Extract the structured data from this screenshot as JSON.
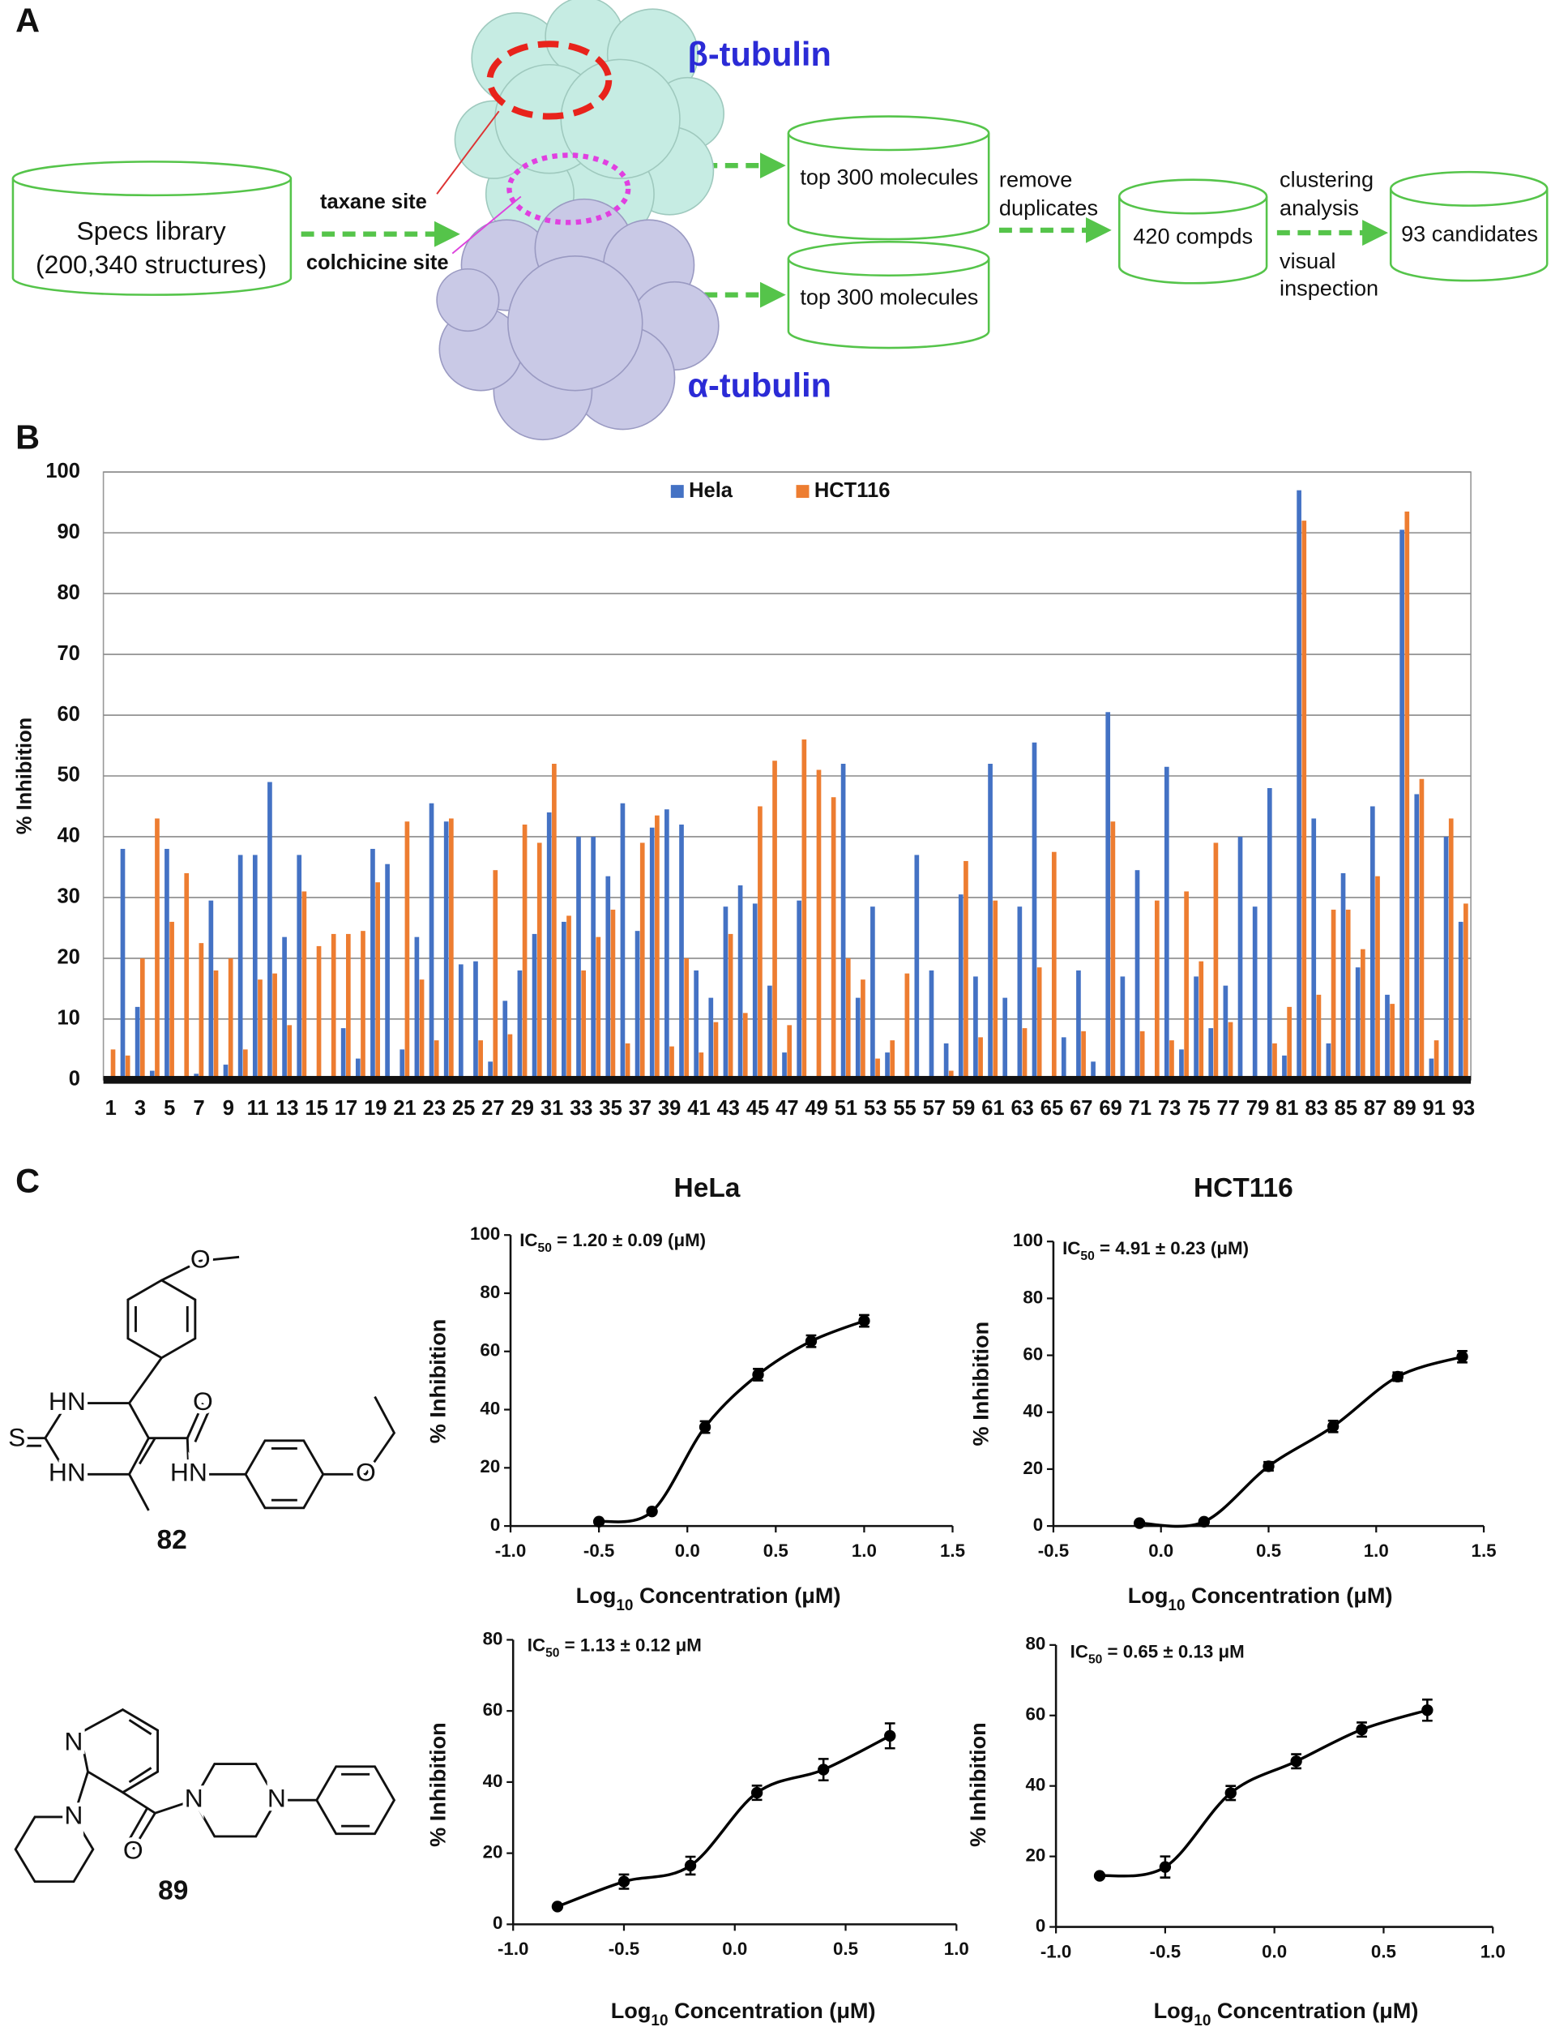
{
  "panel_labels": [
    "A",
    "B",
    "C"
  ],
  "diagram": {
    "library": [
      "Specs library",
      "(200,340 structures)"
    ],
    "taxane_site": "taxane site",
    "colchicine_site": "colchicine site",
    "beta": "β-tubulin",
    "alpha": "α-tubulin",
    "top_hits": [
      "top 300 molecules",
      "top 300 molecules"
    ],
    "step1": [
      "remove",
      "duplicates"
    ],
    "compounds": "420 compds",
    "step2_top": [
      "clustering",
      "analysis"
    ],
    "step2_bottom": [
      "visual",
      "inspection"
    ],
    "candidates": "93 candidates"
  },
  "structures": [
    {
      "label": "82",
      "atoms": [
        "O",
        "HN",
        "O",
        "S",
        "HN",
        "HN",
        "O"
      ]
    },
    {
      "label": "89",
      "atoms": [
        "N",
        "N",
        "O",
        "N",
        "N"
      ]
    }
  ],
  "chart_data": [
    {
      "type": "bar",
      "y_label": "% Inhibition",
      "grid": true,
      "legend": "top",
      "ylim": [
        0,
        100
      ],
      "yticks": [
        0,
        10,
        20,
        30,
        40,
        50,
        60,
        70,
        80,
        90,
        100
      ],
      "categories": [
        "1",
        null,
        "3",
        null,
        "5",
        null,
        "7",
        null,
        "9",
        null,
        "11",
        null,
        "13",
        null,
        "15",
        null,
        "17",
        null,
        "19",
        null,
        "21",
        null,
        "23",
        null,
        "25",
        null,
        "27",
        null,
        "29",
        null,
        "31",
        null,
        "33",
        null,
        "35",
        null,
        "37",
        null,
        "39",
        null,
        "41",
        null,
        "43",
        null,
        "45",
        null,
        "47",
        null,
        "49",
        null,
        "51",
        null,
        "53",
        null,
        "55",
        null,
        "57",
        null,
        "59",
        null,
        "61",
        null,
        "63",
        null,
        "65",
        null,
        "67",
        null,
        "69",
        null,
        "71",
        null,
        "73",
        null,
        "75",
        null,
        "77",
        null,
        "79",
        null,
        "81",
        null,
        "83",
        null,
        "85",
        null,
        "87",
        null,
        "89",
        null,
        "91",
        null,
        "93"
      ],
      "series": [
        {
          "name": "Hela",
          "color": "#4472c4",
          "values": [
            0.5,
            38,
            12,
            1.5,
            38,
            0.5,
            1,
            29.5,
            2.5,
            37,
            37,
            49,
            23.5,
            37,
            0.5,
            0.5,
            8.5,
            3.5,
            38,
            35.5,
            5,
            23.5,
            45.5,
            42.5,
            19,
            19.5,
            3,
            13,
            18,
            24,
            44,
            26,
            40,
            40,
            33.5,
            45.5,
            24.5,
            41.5,
            44.5,
            42,
            18,
            13.5,
            28.5,
            32,
            29,
            15.5,
            4.5,
            29.5,
            0.5,
            0.5,
            52,
            13.5,
            28.5,
            4.5,
            0.5,
            37,
            18,
            6,
            30.5,
            17,
            52,
            13.5,
            28.5,
            55.5,
            0.5,
            7,
            18,
            3,
            60.5,
            17,
            34.5,
            0.5,
            51.5,
            5,
            17,
            8.5,
            15.5,
            40,
            28.5,
            48,
            4,
            97,
            43,
            6,
            34,
            18.5,
            45,
            14,
            90.5,
            47,
            3.5,
            40,
            26
          ]
        },
        {
          "name": "HCT116",
          "color": "#ed7d31",
          "values": [
            5,
            4,
            20,
            43,
            26,
            34,
            22.5,
            18,
            20,
            5,
            16.5,
            17.5,
            9,
            31,
            22,
            24,
            24,
            24.5,
            32.5,
            0.5,
            42.5,
            16.5,
            6.5,
            43,
            0.5,
            6.5,
            34.5,
            7.5,
            42,
            39,
            52,
            27,
            18,
            23.5,
            28,
            6,
            39,
            43.5,
            5.5,
            20,
            4.5,
            9.5,
            24,
            11,
            45,
            52.5,
            9,
            56,
            51,
            46.5,
            20,
            16.5,
            3.5,
            6.5,
            17.5,
            0.5,
            0.5,
            1.5,
            36,
            7,
            29.5,
            0.5,
            8.5,
            18.5,
            37.5,
            0.5,
            8,
            0.5,
            42.5,
            0.5,
            8,
            29.5,
            6.5,
            31,
            19.5,
            39,
            9.5,
            0.5,
            0.5,
            6,
            12,
            92,
            14,
            28,
            28,
            21.5,
            33.5,
            12.5,
            93.5,
            49.5,
            6.5,
            43,
            29
          ]
        }
      ]
    },
    {
      "type": "dose-response",
      "title": "HeLa",
      "curve": true,
      "annotation": {
        "main": "IC",
        "sub": "50",
        "rest": " = 1.20 ± 0.09 (μM)"
      },
      "y_label": "% Inhibition",
      "x_label": {
        "main": "Log",
        "sub": "10",
        "rest": " Concentration (μM)"
      },
      "xlim": [
        -1,
        1.5
      ],
      "xticks": [
        {
          "value": -1,
          "label": "-1.0"
        },
        -0.5,
        {
          "value": 0,
          "label": "0.0"
        },
        0.5,
        {
          "value": 1,
          "label": "1.0"
        },
        1.5
      ],
      "ylim": [
        0,
        100
      ],
      "yticks": [
        0,
        20,
        40,
        60,
        80,
        100
      ],
      "x": [
        -0.5,
        -0.2,
        0.1,
        0.4,
        0.7,
        1.0
      ],
      "series": [
        {
          "color": "#000000",
          "values": [
            1.5,
            5,
            34,
            52,
            63.5,
            70.5
          ],
          "errors": [
            0,
            0,
            2,
            2,
            2,
            2
          ]
        }
      ]
    },
    {
      "type": "dose-response",
      "title": "HCT116",
      "curve": true,
      "annotation": {
        "main": "IC",
        "sub": "50",
        "rest": " = 4.91 ± 0.23 (μM)"
      },
      "y_label": "% Inhibition",
      "x_label": {
        "main": "Log",
        "sub": "10",
        "rest": " Concentration (μM)"
      },
      "xlim": [
        -0.5,
        1.5
      ],
      "xticks": [
        -0.5,
        {
          "value": 0,
          "label": "0.0"
        },
        0.5,
        {
          "value": 1,
          "label": "1.0"
        },
        1.5
      ],
      "ylim": [
        0,
        100
      ],
      "yticks": [
        0,
        20,
        40,
        60,
        80,
        100
      ],
      "x": [
        -0.1,
        0.2,
        0.5,
        0.8,
        1.1,
        1.4
      ],
      "series": [
        {
          "color": "#000000",
          "values": [
            1,
            1.5,
            21,
            35,
            52.5,
            59.5
          ],
          "errors": [
            0,
            0,
            1.5,
            2,
            1.5,
            2
          ]
        }
      ]
    },
    {
      "type": "dose-response",
      "curve": true,
      "annotation": {
        "main": "IC",
        "sub": "50",
        "rest": " = 1.13 ± 0.12 μM"
      },
      "y_label": "% Inhibition",
      "x_label": {
        "main": "Log",
        "sub": "10",
        "rest": " Concentration (μM)"
      },
      "xlim": [
        -1,
        1
      ],
      "xticks": [
        {
          "value": -1,
          "label": "-1.0"
        },
        -0.5,
        {
          "value": 0,
          "label": "0.0"
        },
        0.5,
        {
          "value": 1,
          "label": "1.0"
        }
      ],
      "ylim": [
        0,
        80
      ],
      "yticks": [
        0,
        20,
        40,
        60,
        80
      ],
      "x": [
        -0.8,
        -0.5,
        -0.2,
        0.1,
        0.4,
        0.7
      ],
      "series": [
        {
          "color": "#000000",
          "values": [
            5,
            12,
            16.5,
            37,
            43.5,
            53
          ],
          "errors": [
            0,
            2,
            2.5,
            2,
            3,
            3.5
          ]
        }
      ]
    },
    {
      "type": "dose-response",
      "curve": true,
      "annotation": {
        "main": "IC",
        "sub": "50",
        "rest": " = 0.65 ± 0.13 μM"
      },
      "y_label": "% Inhibition",
      "x_label": {
        "main": "Log",
        "sub": "10",
        "rest": " Concentration (μM)"
      },
      "xlim": [
        -1,
        1
      ],
      "xticks": [
        {
          "value": -1,
          "label": "-1.0"
        },
        -0.5,
        {
          "value": 0,
          "label": "0.0"
        },
        0.5,
        {
          "value": 1,
          "label": "1.0"
        }
      ],
      "ylim": [
        0,
        80
      ],
      "yticks": [
        0,
        20,
        40,
        60,
        80
      ],
      "x": [
        -0.8,
        -0.5,
        -0.2,
        0.1,
        0.4,
        0.7
      ],
      "series": [
        {
          "color": "#000000",
          "values": [
            14.5,
            17,
            38,
            47,
            56,
            61.5
          ],
          "errors": [
            0,
            3,
            2,
            2,
            2,
            3
          ]
        }
      ]
    }
  ]
}
